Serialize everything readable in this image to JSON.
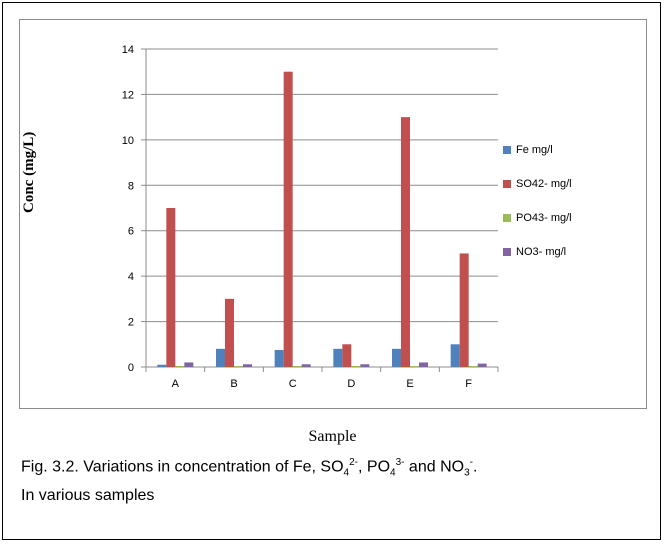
{
  "chart_data": {
    "type": "bar",
    "categories": [
      "A",
      "B",
      "C",
      "D",
      "E",
      "F"
    ],
    "series": [
      {
        "name": "Fe mg/l",
        "color": "#4f81bd",
        "values": [
          0.1,
          0.8,
          0.75,
          0.8,
          0.8,
          1.0
        ]
      },
      {
        "name": "SO42- mg/l",
        "color": "#c0504d",
        "values": [
          7,
          3,
          13,
          1,
          11,
          5
        ]
      },
      {
        "name": "PO43- mg/l",
        "color": "#9bbb59",
        "values": [
          0.02,
          0.02,
          0.02,
          0.02,
          0.02,
          0.02
        ]
      },
      {
        "name": "NO3- mg/l",
        "color": "#8064a2",
        "values": [
          0.2,
          0.12,
          0.12,
          0.12,
          0.2,
          0.15
        ]
      }
    ],
    "ylim": [
      0,
      14
    ],
    "yticks": [
      0,
      2,
      4,
      6,
      8,
      10,
      12,
      14
    ],
    "ylabel": "Conc (mg/L)",
    "xlabel": "Sample",
    "grid": true,
    "legend": "right"
  },
  "caption": {
    "text1": "Fig. 3.2. Variations in concentration of Fe, SO",
    "so4_sub": "4",
    "so4_sup": "2-",
    "text2": ", PO",
    "po4_sub": "4",
    "po4_sup": "3-",
    "text3": " and NO",
    "no3_sub": "3",
    "no3_sup": "-",
    "text4": ".",
    "line2": "In various samples"
  }
}
